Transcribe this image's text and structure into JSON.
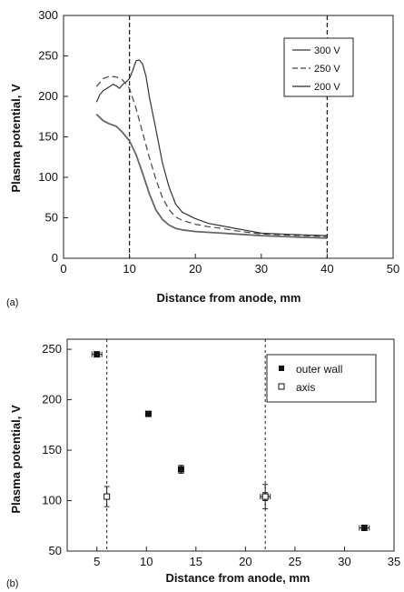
{
  "chart_data": [
    {
      "panel_label": "(a)",
      "type": "line",
      "xlabel": "Distance from anode, mm",
      "ylabel": "Plasma potential, V",
      "xlim": [
        0,
        50
      ],
      "ylim": [
        0,
        300
      ],
      "xticks": [
        "0",
        "10",
        "20",
        "30",
        "40",
        "50"
      ],
      "yticks": [
        "0",
        "50",
        "100",
        "150",
        "200",
        "250",
        "300"
      ],
      "grid": false,
      "legend_position": "top-right",
      "vertical_reference_lines_x": [
        10,
        40
      ],
      "series": [
        {
          "name": "300 V",
          "style": "solid",
          "color": "#333333",
          "x": [
            5,
            5.5,
            6,
            7,
            7.5,
            8,
            8.5,
            9,
            9.5,
            10,
            10.5,
            11,
            11.5,
            12,
            12.5,
            13,
            14,
            15,
            16,
            17,
            18,
            20,
            22,
            24,
            26,
            28,
            30,
            33,
            36,
            40
          ],
          "y": [
            193,
            202,
            207,
            212,
            215,
            213,
            210,
            215,
            218,
            222,
            232,
            244,
            245,
            240,
            225,
            200,
            160,
            118,
            88,
            67,
            57,
            49,
            43,
            40,
            37,
            34,
            31,
            30,
            29,
            28
          ]
        },
        {
          "name": "250 V",
          "style": "dashed",
          "color": "#444444",
          "x": [
            5,
            6,
            7,
            8,
            9,
            10,
            11,
            12,
            13,
            14,
            15,
            16,
            17,
            18,
            20,
            22,
            24,
            26,
            28,
            30,
            33,
            36,
            40
          ],
          "y": [
            212,
            222,
            225,
            224,
            220,
            210,
            185,
            155,
            125,
            98,
            75,
            60,
            51,
            47,
            42,
            39,
            37,
            34,
            32,
            30,
            29,
            28,
            27
          ]
        },
        {
          "name": "200 V",
          "style": "solid",
          "color": "#666666",
          "x": [
            5,
            6,
            7,
            8,
            9,
            10,
            11,
            12,
            13,
            14,
            15,
            16,
            17,
            18,
            20,
            22,
            24,
            26,
            28,
            30,
            33,
            36,
            40
          ],
          "y": [
            178,
            170,
            166,
            163,
            155,
            145,
            128,
            105,
            80,
            60,
            48,
            41,
            37,
            35,
            33,
            32,
            31,
            30,
            29,
            28,
            27,
            26,
            25
          ]
        }
      ]
    },
    {
      "panel_label": "(b)",
      "type": "scatter",
      "xlabel": "Distance from anode, mm",
      "ylabel": "Plasma potential, V",
      "xlim": [
        2,
        35
      ],
      "ylim": [
        50,
        260
      ],
      "xticks": [
        "5",
        "10",
        "15",
        "20",
        "25",
        "30",
        "35"
      ],
      "yticks": [
        "50",
        "100",
        "150",
        "200",
        "250"
      ],
      "grid": false,
      "legend_position": "top-right",
      "vertical_reference_lines_x": [
        6,
        22
      ],
      "series": [
        {
          "name": "outer wall",
          "marker": "filled-square",
          "points": [
            {
              "x": 5,
              "y": 245,
              "xerr": 0.5,
              "yerr": 2
            },
            {
              "x": 10.2,
              "y": 186,
              "xerr": 0,
              "yerr": 1
            },
            {
              "x": 13.5,
              "y": 131,
              "xerr": 0,
              "yerr": 4
            },
            {
              "x": 22,
              "y": 104,
              "xerr": 0.5,
              "yerr": 4
            },
            {
              "x": 32,
              "y": 73,
              "xerr": 0.5,
              "yerr": 2
            }
          ]
        },
        {
          "name": "axis",
          "marker": "open-square",
          "points": [
            {
              "x": 6,
              "y": 104,
              "xerr": 0,
              "yerr": 10
            },
            {
              "x": 22,
              "y": 104,
              "xerr": 0,
              "yerr": 12
            }
          ]
        }
      ]
    }
  ]
}
